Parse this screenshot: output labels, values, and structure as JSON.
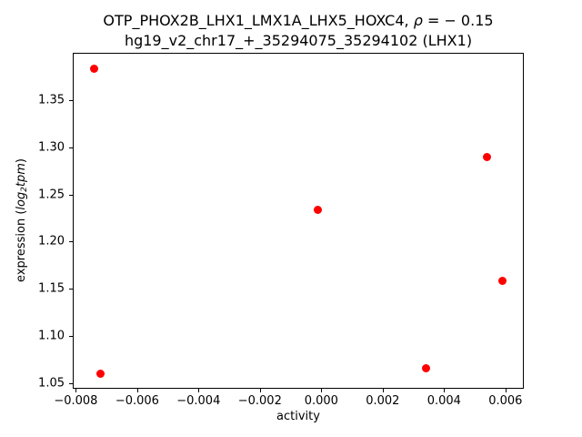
{
  "chart_data": {
    "type": "scatter",
    "title": {
      "line1_prefix": "OTP_PHOX2B_LHX1_LMX1A_LHX5_HOXC4, ",
      "line1_rho": "ρ",
      "line1_rest": " = − 0.15",
      "line2": "hg19_v2_chr17_+_35294075_35294102 (LHX1)"
    },
    "xlabel": "activity",
    "ylabel": {
      "prefix": "expression (",
      "log": "log",
      "sub": "2",
      "var": "tpm",
      "suffix": ")"
    },
    "xlim": [
      -0.0081,
      0.0066
    ],
    "ylim": [
      1.044,
      1.4
    ],
    "x_ticks": [
      -0.008,
      -0.006,
      -0.004,
      -0.002,
      0.0,
      0.002,
      0.004,
      0.006
    ],
    "x_tick_labels": [
      "−0.008",
      "−0.006",
      "−0.004",
      "−0.002",
      "0.000",
      "0.002",
      "0.004",
      "0.006"
    ],
    "y_ticks": [
      1.05,
      1.1,
      1.15,
      1.2,
      1.25,
      1.3,
      1.35
    ],
    "y_tick_labels": [
      "1.05",
      "1.10",
      "1.15",
      "1.20",
      "1.25",
      "1.30",
      "1.35"
    ],
    "points": [
      {
        "x": -0.0074,
        "y": 1.383
      },
      {
        "x": -0.0072,
        "y": 1.06
      },
      {
        "x": -0.0001,
        "y": 1.234
      },
      {
        "x": 0.0034,
        "y": 1.066
      },
      {
        "x": 0.0054,
        "y": 1.29
      },
      {
        "x": 0.0059,
        "y": 1.158
      }
    ],
    "marker_color": "#ff0000",
    "marker_diameter_px": 9,
    "grid": false,
    "legend": "none"
  }
}
